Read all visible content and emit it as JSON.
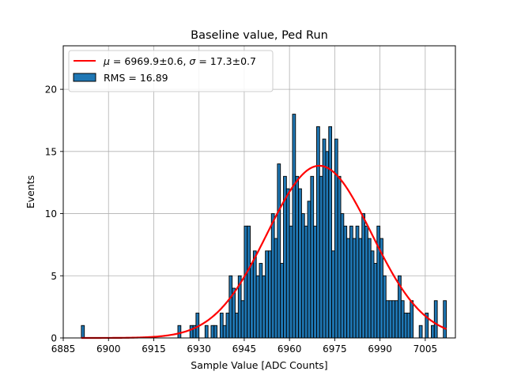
{
  "chart_data": {
    "type": "bar",
    "title": "Baseline value, Ped Run",
    "xlabel": "Sample Value [ADC Counts]",
    "ylabel": "Events",
    "xlim": [
      6885,
      7015
    ],
    "ylim": [
      0,
      23.5
    ],
    "xticks": [
      6885,
      6900,
      6915,
      6930,
      6945,
      6960,
      6975,
      6990,
      7005
    ],
    "yticks": [
      0,
      5,
      10,
      15,
      20
    ],
    "grid": true,
    "legend_position": "top-left",
    "bin_width": 1,
    "series": [
      {
        "name": "RMS = 16.89",
        "color": "#1f77b4",
        "bins": [
          [
            6891,
            1
          ],
          [
            6923,
            1
          ],
          [
            6927,
            1
          ],
          [
            6928,
            1
          ],
          [
            6929,
            2
          ],
          [
            6932,
            1
          ],
          [
            6934,
            1
          ],
          [
            6935,
            1
          ],
          [
            6937,
            2
          ],
          [
            6938,
            1
          ],
          [
            6939,
            2
          ],
          [
            6940,
            5
          ],
          [
            6941,
            4
          ],
          [
            6942,
            2
          ],
          [
            6943,
            5
          ],
          [
            6944,
            3
          ],
          [
            6945,
            9
          ],
          [
            6946,
            9
          ],
          [
            6947,
            6
          ],
          [
            6948,
            7
          ],
          [
            6949,
            5
          ],
          [
            6950,
            6
          ],
          [
            6951,
            5
          ],
          [
            6952,
            7
          ],
          [
            6953,
            7
          ],
          [
            6954,
            10
          ],
          [
            6955,
            8
          ],
          [
            6956,
            14
          ],
          [
            6957,
            6
          ],
          [
            6958,
            13
          ],
          [
            6959,
            12
          ],
          [
            6960,
            9
          ],
          [
            6961,
            18
          ],
          [
            6962,
            13
          ],
          [
            6963,
            12
          ],
          [
            6964,
            10
          ],
          [
            6965,
            9
          ],
          [
            6966,
            11
          ],
          [
            6967,
            13
          ],
          [
            6968,
            9
          ],
          [
            6969,
            17
          ],
          [
            6970,
            13
          ],
          [
            6971,
            16
          ],
          [
            6972,
            15
          ],
          [
            6973,
            17
          ],
          [
            6974,
            7
          ],
          [
            6975,
            16
          ],
          [
            6976,
            13
          ],
          [
            6977,
            10
          ],
          [
            6978,
            9
          ],
          [
            6979,
            8
          ],
          [
            6980,
            9
          ],
          [
            6981,
            8
          ],
          [
            6982,
            9
          ],
          [
            6983,
            8
          ],
          [
            6984,
            10
          ],
          [
            6985,
            9
          ],
          [
            6986,
            8
          ],
          [
            6987,
            7
          ],
          [
            6988,
            6
          ],
          [
            6989,
            9
          ],
          [
            6990,
            8
          ],
          [
            6991,
            5
          ],
          [
            6992,
            3
          ],
          [
            6993,
            3
          ],
          [
            6994,
            3
          ],
          [
            6995,
            3
          ],
          [
            6996,
            5
          ],
          [
            6997,
            3
          ],
          [
            6998,
            2
          ],
          [
            6999,
            2
          ],
          [
            7000,
            3
          ],
          [
            7003,
            1
          ],
          [
            7005,
            2
          ],
          [
            7007,
            1
          ],
          [
            7008,
            3
          ],
          [
            7011,
            3
          ]
        ]
      },
      {
        "name": "$\\mu = 6969.9 \\pm 0.6$, $\\sigma = 17.3 \\pm 0.7$",
        "type": "line",
        "color": "#ff0000",
        "fit": {
          "model": "gaussian",
          "mu": 6969.9,
          "sigma": 17.3,
          "amplitude": 13.85
        },
        "x_range": [
          6891,
          7012
        ]
      }
    ]
  }
}
